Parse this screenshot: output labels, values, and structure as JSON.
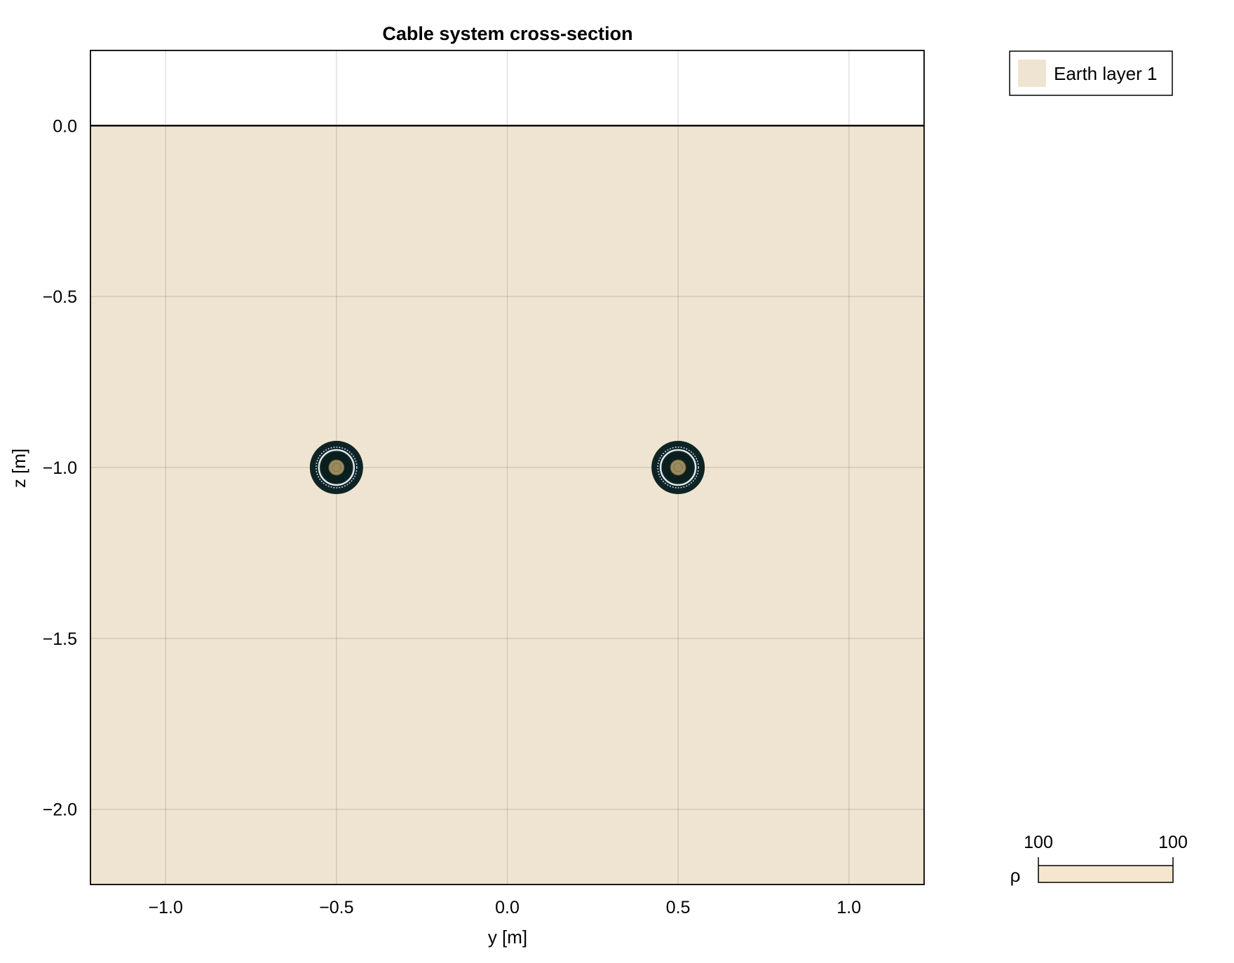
{
  "chart_data": {
    "type": "scatter",
    "title": "Cable system cross-section",
    "xlabel": "y [m]",
    "ylabel": "z [m]",
    "xlim": [
      -1.22,
      1.22
    ],
    "ylim": [
      -2.22,
      0.22
    ],
    "x_ticks": [
      -1.0,
      -0.5,
      0.0,
      0.5,
      1.0
    ],
    "x_tick_labels": [
      "−1.0",
      "−0.5",
      "0.0",
      "0.5",
      "1.0"
    ],
    "y_ticks": [
      0.0,
      -0.5,
      -1.0,
      -1.5,
      -2.0
    ],
    "y_tick_labels": [
      "0.0",
      "−0.5",
      "−1.0",
      "−1.5",
      "−2.0"
    ],
    "grid": true,
    "ground_level": 0.0,
    "cables": [
      {
        "y": -0.5,
        "z": -1.0
      },
      {
        "y": 0.5,
        "z": -1.0
      }
    ],
    "legend": {
      "placement": "top-right, outside plot",
      "entries": [
        {
          "label": "Earth layer 1",
          "color": "#efe4d1"
        }
      ]
    },
    "colorbar": {
      "label": "ρ",
      "min_label": "100",
      "max_label": "100",
      "color": "#f4e6cf"
    },
    "colors": {
      "earth": "#efe4d1",
      "cable_jacket": "#0e2424",
      "insulation_ring": "#dfe7ea",
      "conductor": "#9a8a5e",
      "grid": "#d4d4d4"
    }
  }
}
